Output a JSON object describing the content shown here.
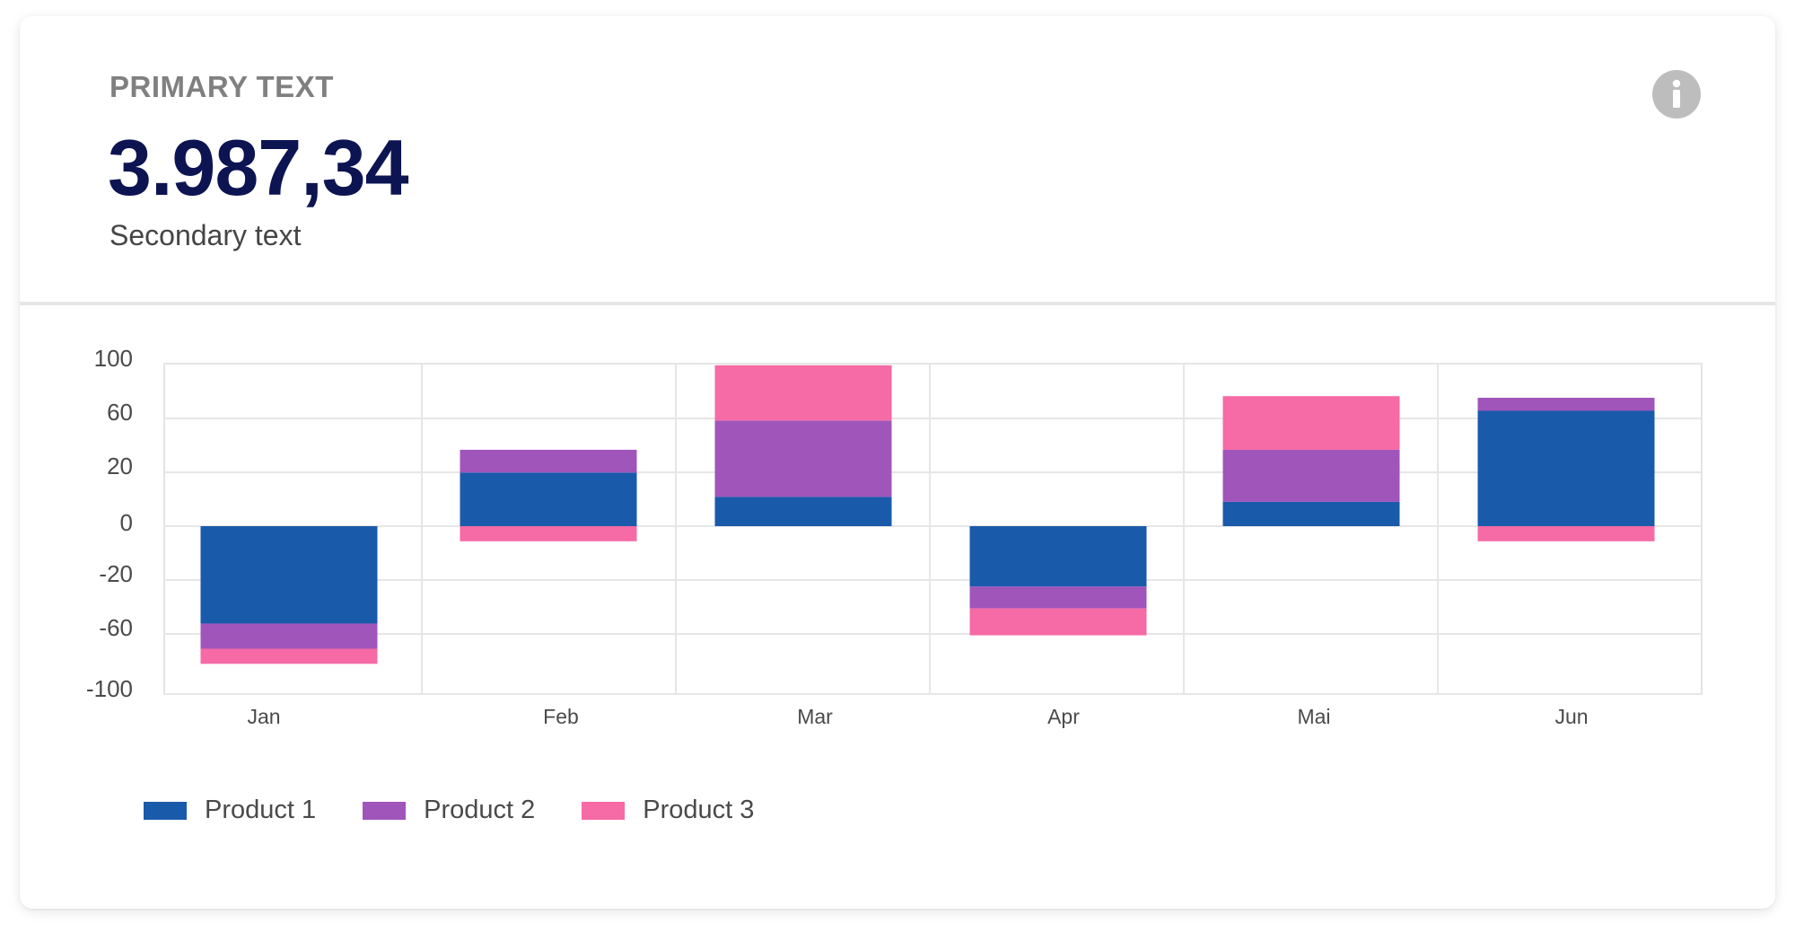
{
  "header": {
    "primary_label": "PRIMARY TEXT",
    "value": "3.987,34",
    "secondary": "Secondary text",
    "info_icon": "info-icon"
  },
  "colors": {
    "product1": "#1a5aaa",
    "product2": "#a055bb",
    "product3": "#f66aa5",
    "value_text": "#0d1452"
  },
  "chart_data": {
    "type": "bar",
    "stacked": true,
    "categories": [
      "Jan",
      "Feb",
      "Mar",
      "Apr",
      "Mai",
      "Jun"
    ],
    "y_tick_labels": [
      "100",
      "60",
      "20",
      "0",
      "-20",
      "-60",
      "-100"
    ],
    "ylim": [
      -100,
      100
    ],
    "grid": true,
    "legend_position": "bottom-left",
    "series": [
      {
        "name": "Product 1",
        "color": "#1a5aaa",
        "values": [
          -58,
          33,
          18,
          -36,
          15,
          71
        ]
      },
      {
        "name": "Product 2",
        "color": "#a055bb",
        "values": [
          -15,
          14,
          47,
          -13,
          32,
          8
        ]
      },
      {
        "name": "Product 3",
        "color": "#f66aa5",
        "values": [
          -9,
          -9,
          34,
          -16,
          33,
          -9
        ]
      }
    ]
  }
}
